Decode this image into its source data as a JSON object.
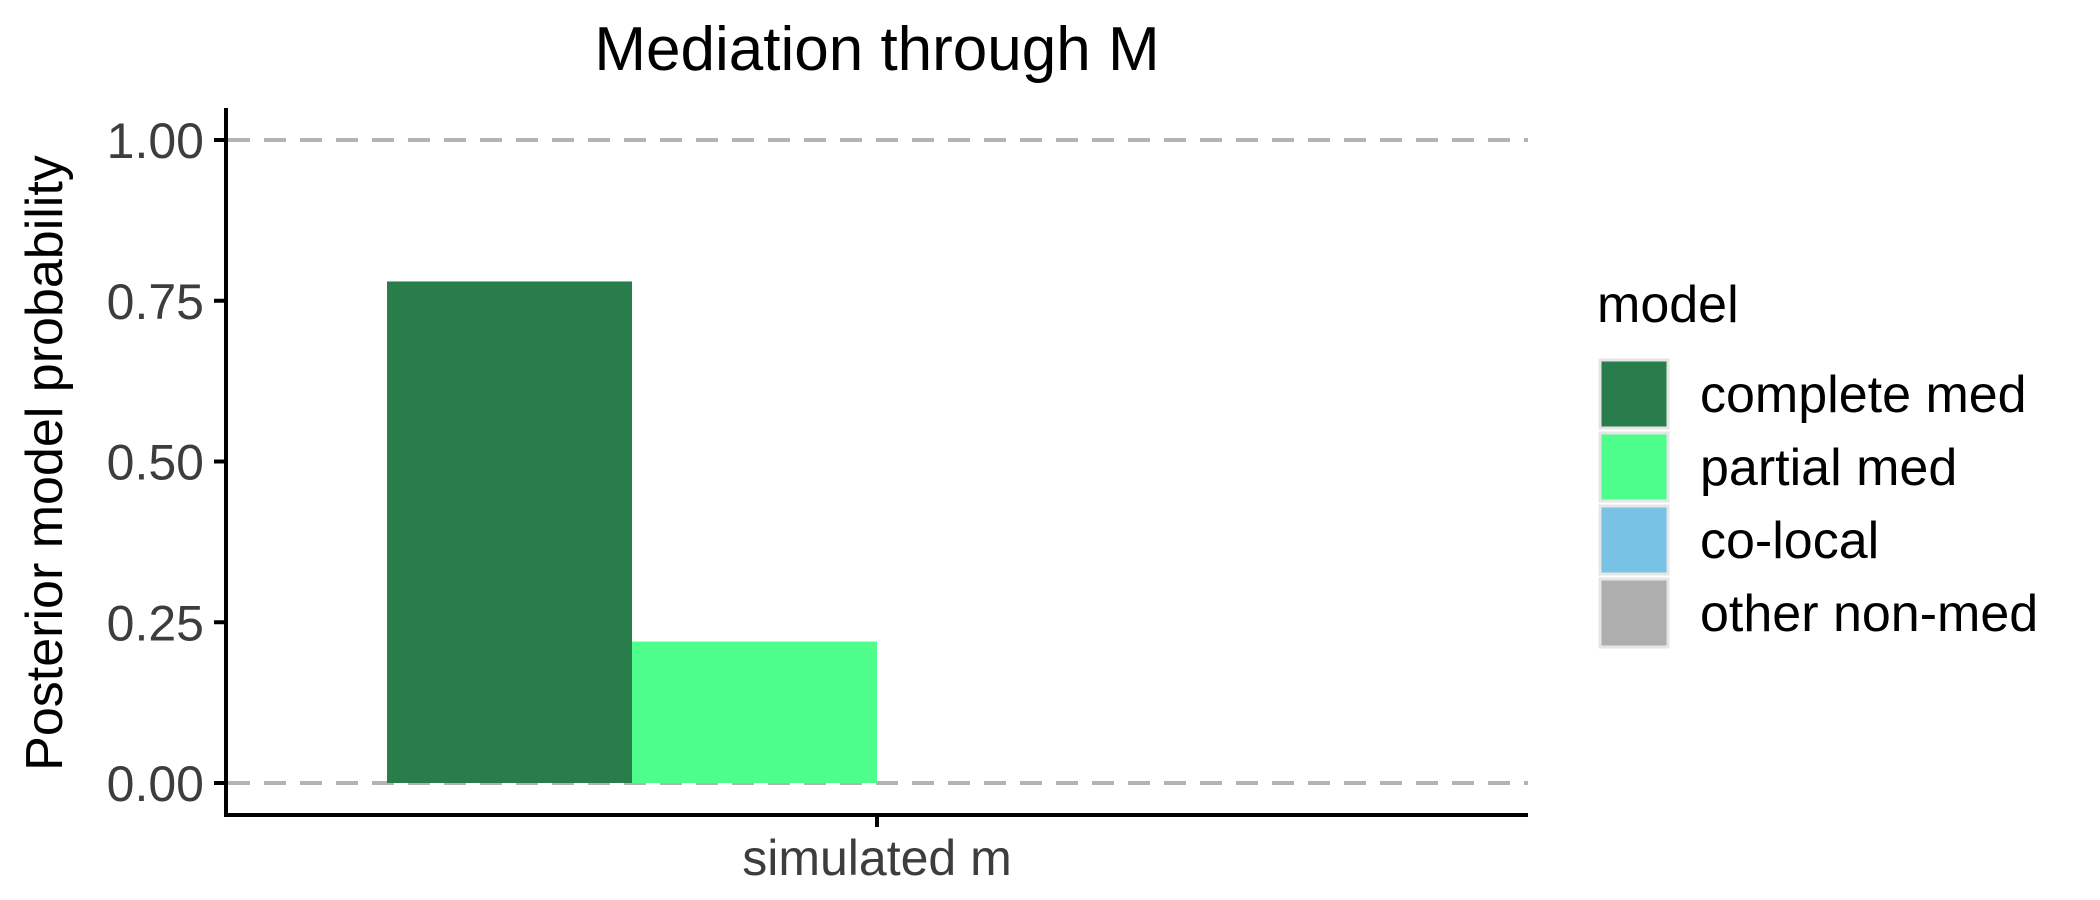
{
  "chart_data": {
    "type": "bar",
    "title": "Mediation through M",
    "xlabel": "",
    "ylabel": "Posterior model probability",
    "categories": [
      "simulated m"
    ],
    "series": [
      {
        "name": "complete med",
        "color": "#287D4A",
        "values": [
          0.78
        ]
      },
      {
        "name": "partial med",
        "color": "#4EFE8D",
        "values": [
          0.22
        ]
      },
      {
        "name": "co-local",
        "color": "#78C2E5",
        "values": [
          0
        ]
      },
      {
        "name": "other non-med",
        "color": "#AEAEAE",
        "values": [
          0
        ]
      }
    ],
    "ylim": [
      0,
      1
    ],
    "yticks": [
      "0.00",
      "0.25",
      "0.50",
      "0.75",
      "1.00"
    ],
    "ytick_values": [
      0,
      0.25,
      0.5,
      0.75,
      1
    ],
    "gridlines": "dashed horizontal at 0 and 1",
    "legend": {
      "title": "model",
      "position": "right"
    }
  }
}
